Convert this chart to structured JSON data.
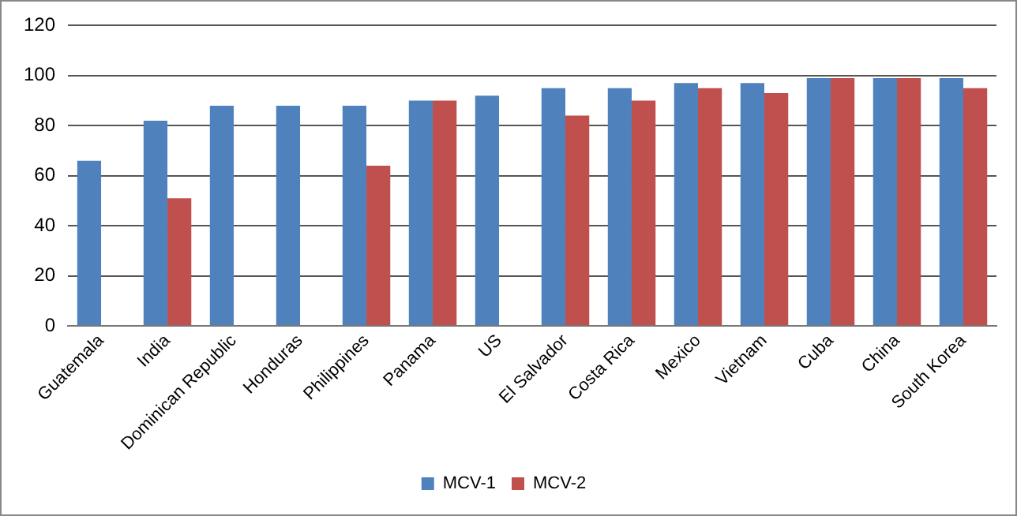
{
  "chart_data": {
    "type": "bar",
    "categories": [
      "Guatemala",
      "India",
      "Dominican Republic",
      "Honduras",
      "Philippines",
      "Panama",
      "US",
      "El Salvador",
      "Costa Rica",
      "Mexico",
      "Vietnam",
      "Cuba",
      "China",
      "South Korea"
    ],
    "series": [
      {
        "name": "MCV-1",
        "color": "#4f81bd",
        "values": [
          66,
          82,
          88,
          88,
          88,
          90,
          92,
          95,
          95,
          97,
          97,
          99,
          99,
          99
        ]
      },
      {
        "name": "MCV-2",
        "color": "#c0504d",
        "values": [
          null,
          51,
          null,
          null,
          64,
          90,
          null,
          84,
          90,
          95,
          93,
          99,
          99,
          95
        ]
      }
    ],
    "ylim": [
      0,
      120
    ],
    "yticks": [
      0,
      20,
      40,
      60,
      80,
      100,
      120
    ],
    "grid": "y",
    "legend": "bottom"
  }
}
